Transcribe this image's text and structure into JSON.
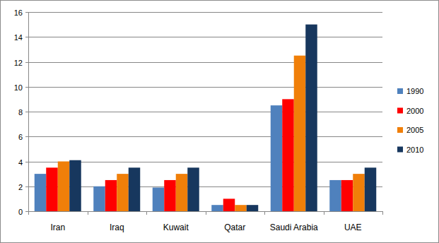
{
  "chart_data": {
    "type": "bar",
    "categories": [
      "Iran",
      "Iraq",
      "Kuwait",
      "Qatar",
      "Saudi Arabia",
      "UAE"
    ],
    "series": [
      {
        "name": "1990",
        "color": "#4f81bd",
        "values": [
          3.0,
          2.0,
          1.9,
          0.5,
          8.5,
          2.5
        ]
      },
      {
        "name": "2000",
        "color": "#ff0000",
        "values": [
          3.5,
          2.5,
          2.5,
          1.0,
          9.0,
          2.5
        ]
      },
      {
        "name": "2005",
        "color": "#f07f09",
        "values": [
          4.0,
          3.0,
          3.0,
          0.5,
          12.5,
          3.0
        ]
      },
      {
        "name": "2010",
        "color": "#17375e",
        "values": [
          4.1,
          3.5,
          3.5,
          0.5,
          15.0,
          3.5
        ]
      }
    ],
    "ylim": [
      0,
      16
    ],
    "yticks": [
      0,
      2,
      4,
      6,
      8,
      10,
      12,
      14,
      16
    ],
    "grid": true,
    "legend": "right"
  }
}
